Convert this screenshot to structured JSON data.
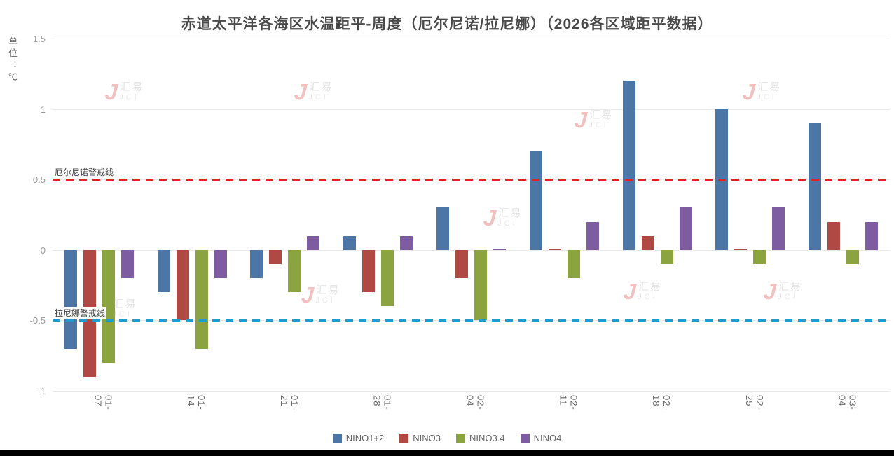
{
  "title": "赤道太平洋各海区水温距平-周度（厄尔尼诺/拉尼娜）（2026各区域距平数据）",
  "y_axis_unit": "单位：℃",
  "watermark": {
    "cn": "汇易",
    "en": "JCI",
    "mark": "J"
  },
  "chart_data": {
    "type": "bar",
    "title": "赤道太平洋各海区水温距平-周度（厄尔尼诺/拉尼娜）（2026各区域距平数据）",
    "categories": [
      "01-07",
      "01-14",
      "01-21",
      "01-28",
      "02-04",
      "02-11",
      "02-18",
      "02-25",
      "03-04"
    ],
    "series": [
      {
        "name": "NINO1+2",
        "color": "#4b76a6",
        "values": [
          -0.7,
          -0.3,
          -0.2,
          0.1,
          0.3,
          0.7,
          1.2,
          1.0,
          0.9
        ]
      },
      {
        "name": "NINO3",
        "color": "#b04843",
        "values": [
          -0.9,
          -0.5,
          -0.1,
          -0.3,
          -0.2,
          0.0,
          0.1,
          0.0,
          0.2
        ]
      },
      {
        "name": "NINO3.4",
        "color": "#8ba43f",
        "values": [
          -0.8,
          -0.7,
          -0.3,
          -0.4,
          -0.5,
          -0.2,
          -0.1,
          -0.1,
          -0.1
        ]
      },
      {
        "name": "NINO4",
        "color": "#7d5ca2",
        "values": [
          -0.2,
          -0.2,
          0.1,
          0.1,
          0.0,
          0.2,
          0.3,
          0.3,
          0.2
        ]
      }
    ],
    "ylabel": "单位：℃",
    "ylim": [
      -1,
      1.5
    ],
    "yticks": [
      1.5,
      1,
      0.5,
      0,
      -0.5,
      -1
    ],
    "reference_lines": [
      {
        "label": "厄尔尼诺警戒线",
        "value": 0.5,
        "color": "#e02222",
        "style": "dashed"
      },
      {
        "label": "拉尼娜警戒线",
        "value": -0.5,
        "color": "#1f9bce",
        "style": "dashed"
      }
    ],
    "grid": true,
    "legend_position": "bottom"
  }
}
